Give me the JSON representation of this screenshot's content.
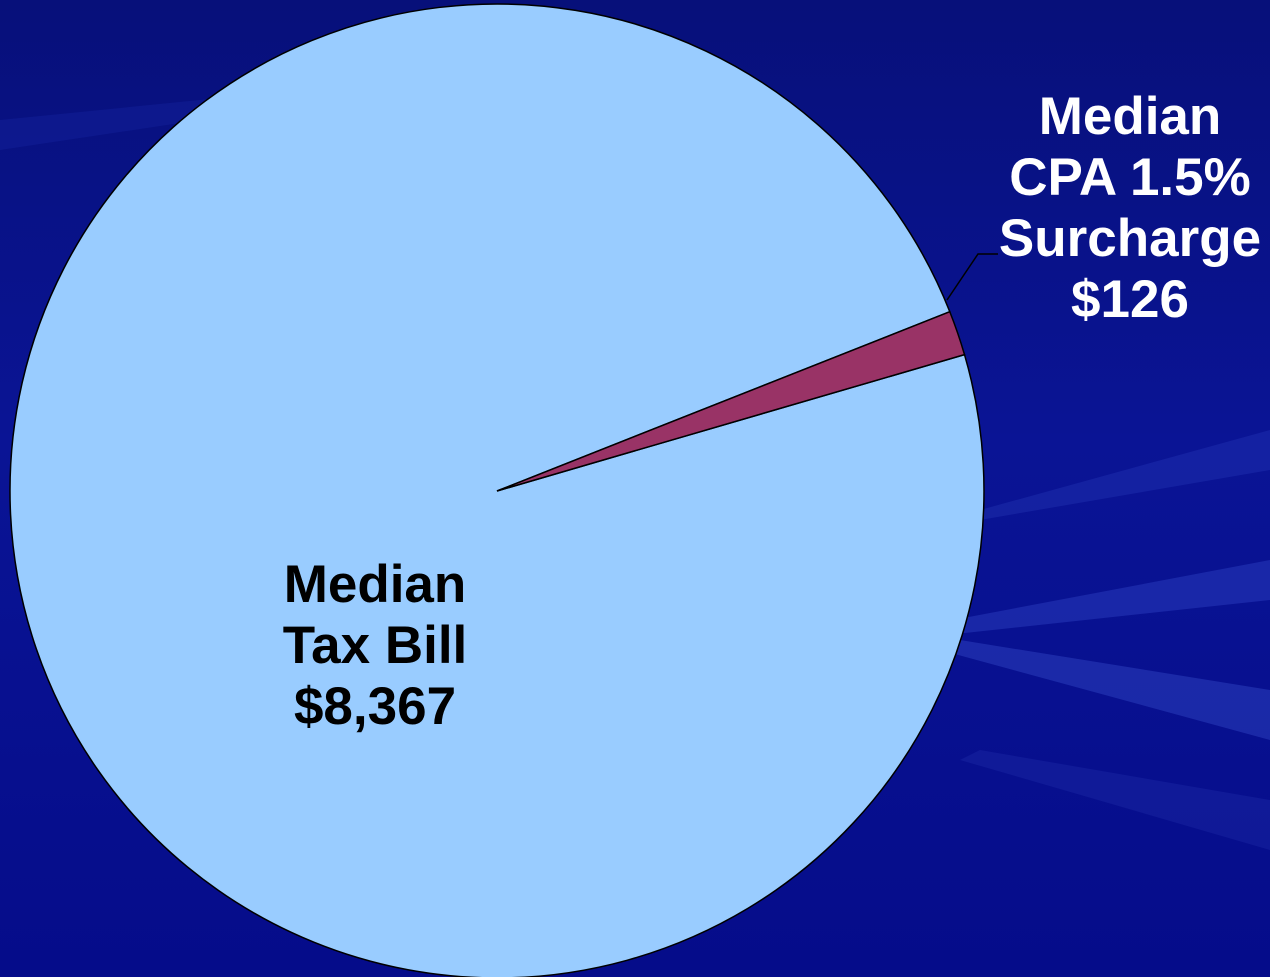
{
  "chart_data": {
    "type": "pie",
    "title": "",
    "slices": [
      {
        "label_lines": [
          "Median",
          "Tax Bill",
          "$8,367"
        ],
        "value": 8367,
        "color": "#99ccff"
      },
      {
        "label_lines": [
          "Median",
          "CPA 1.5%",
          "Surcharge",
          "$126"
        ],
        "value": 126,
        "color": "#993366"
      }
    ],
    "legend": "none",
    "background_color": "#0a1495"
  }
}
